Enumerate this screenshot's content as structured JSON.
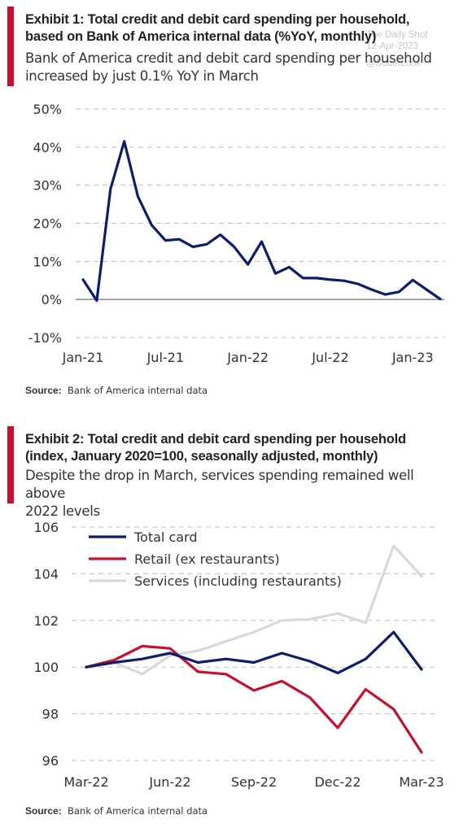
{
  "watermark": {
    "line1": "The Daily Shot",
    "line2": "12-Apr-2023",
    "line3": "@SoberLook"
  },
  "exhibit1": {
    "title_line1": "Exhibit 1: Total credit and debit card spending per household,",
    "title_line2": "based on Bank  of America internal data (%YoY, monthly)",
    "subtitle_line1": "Bank of America credit and debit card spending per household",
    "subtitle_line2": "increased by just 0.1% YoY in March",
    "source_label": "Source:",
    "source_text": "Bank of America internal data"
  },
  "exhibit2": {
    "title_line1": "Exhibit 2: Total credit and debit card spending per household",
    "title_line2": "(index, January  2020=100,  seasonally adjusted, monthly)",
    "subtitle_line1": "Despite the drop in March, services spending remained well above",
    "subtitle_line2": "2022 levels",
    "source_label": "Source:",
    "source_text": "Bank of America internal data"
  },
  "colors": {
    "accent": "#c8102e",
    "navy": "#0d1d6b",
    "red": "#c8102e",
    "gray": "#d9d9d9",
    "grid": "#bfbfbf"
  },
  "chart_data": [
    {
      "type": "line",
      "x": [
        "Jan-21",
        "Feb-21",
        "Mar-21",
        "Apr-21",
        "May-21",
        "Jun-21",
        "Jul-21",
        "Aug-21",
        "Sep-21",
        "Oct-21",
        "Nov-21",
        "Dec-21",
        "Jan-22",
        "Feb-22",
        "Mar-22",
        "Apr-22",
        "May-22",
        "Jun-22",
        "Jul-22",
        "Aug-22",
        "Sep-22",
        "Oct-22",
        "Nov-22",
        "Dec-22",
        "Jan-23",
        "Feb-23",
        "Mar-23"
      ],
      "x_tick_labels": [
        "Jan-21",
        "Jul-21",
        "Jan-22",
        "Jul-22",
        "Jan-23"
      ],
      "series": [
        {
          "values": [
            5.2,
            -0.3,
            29.0,
            41.5,
            27.0,
            19.5,
            15.5,
            15.8,
            13.8,
            14.5,
            17.0,
            13.8,
            9.2,
            15.2,
            6.8,
            8.5,
            5.6,
            5.6,
            5.2,
            4.9,
            4.1,
            2.6,
            1.3,
            2.0,
            5.1,
            2.6,
            0.1
          ]
        }
      ],
      "ylim": [
        -10,
        50
      ],
      "y_ticks": [
        -10,
        0,
        10,
        20,
        30,
        40,
        50
      ],
      "y_tick_labels": [
        "-10%",
        "0%",
        "10%",
        "20%",
        "30%",
        "40%",
        "50%"
      ],
      "grid": true
    },
    {
      "type": "line",
      "x": [
        "Mar-22",
        "Apr-22",
        "May-22",
        "Jun-22",
        "Jul-22",
        "Aug-22",
        "Sep-22",
        "Oct-22",
        "Nov-22",
        "Dec-22",
        "Jan-23",
        "Feb-23",
        "Mar-23"
      ],
      "x_tick_labels": [
        "Mar-22",
        "Jun-22",
        "Sep-22",
        "Dec-22",
        "Mar-23"
      ],
      "series": [
        {
          "name": "Total card",
          "color": "#0d1d6b",
          "values": [
            100.0,
            100.2,
            100.35,
            100.6,
            100.2,
            100.35,
            100.2,
            100.6,
            100.25,
            99.75,
            100.35,
            101.5,
            99.9
          ]
        },
        {
          "name": "Retail (ex restaurants)",
          "color": "#c8102e",
          "values": [
            100.0,
            100.3,
            100.9,
            100.8,
            99.8,
            99.7,
            99.0,
            99.4,
            98.7,
            97.4,
            99.05,
            98.2,
            96.35
          ]
        },
        {
          "name": "Services (including restaurants)",
          "color": "#d9d9d9",
          "values": [
            100.0,
            100.2,
            99.7,
            100.5,
            100.7,
            101.1,
            101.5,
            102.0,
            102.05,
            102.3,
            101.9,
            105.2,
            103.9
          ]
        }
      ],
      "ylim": [
        96,
        106
      ],
      "y_ticks": [
        96,
        98,
        100,
        102,
        104,
        106
      ],
      "y_tick_labels": [
        "96",
        "98",
        "100",
        "102",
        "104",
        "106"
      ],
      "legend": "top-left",
      "grid": true
    }
  ]
}
